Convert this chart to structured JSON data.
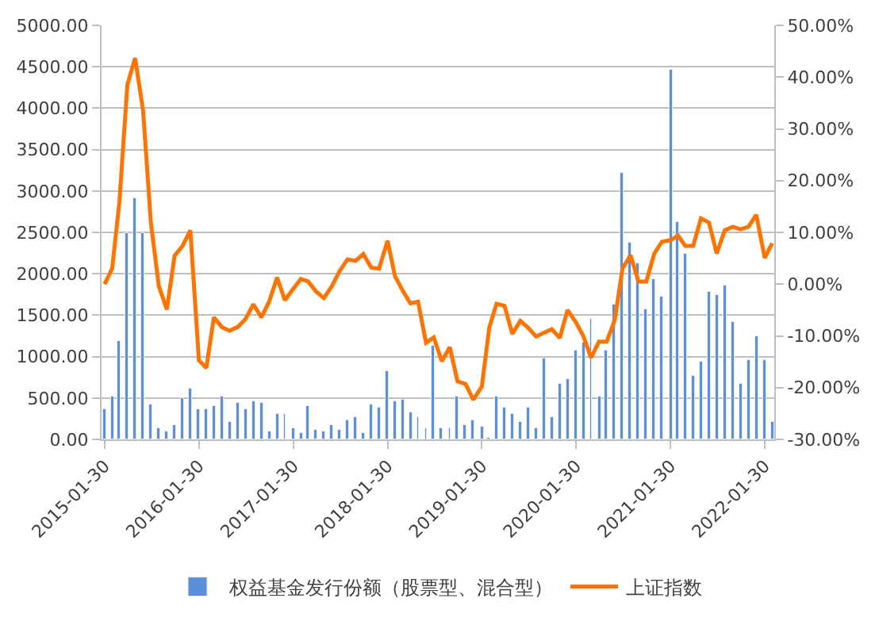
{
  "chart_data": {
    "type": "bar",
    "x": [
      "2015-01-30",
      "2015-02-28",
      "2015-03-28",
      "2015-04-28",
      "2015-05-28",
      "2015-06-28",
      "2015-07-28",
      "2015-08-28",
      "2015-09-28",
      "2015-10-28",
      "2015-11-28",
      "2015-12-28",
      "2016-01-30",
      "2016-02-28",
      "2016-03-28",
      "2016-04-28",
      "2016-05-28",
      "2016-06-28",
      "2016-07-28",
      "2016-08-28",
      "2016-09-28",
      "2016-10-28",
      "2016-11-28",
      "2016-12-28",
      "2017-01-30",
      "2017-02-28",
      "2017-03-28",
      "2017-04-28",
      "2017-05-28",
      "2017-06-28",
      "2017-07-28",
      "2017-08-28",
      "2017-09-28",
      "2017-10-28",
      "2017-11-28",
      "2017-12-28",
      "2018-01-30",
      "2018-02-28",
      "2018-03-28",
      "2018-04-28",
      "2018-05-28",
      "2018-06-28",
      "2018-07-28",
      "2018-08-28",
      "2018-09-28",
      "2018-10-28",
      "2018-11-28",
      "2018-12-28",
      "2019-01-30",
      "2019-02-28",
      "2019-03-28",
      "2019-04-28",
      "2019-05-28",
      "2019-06-28",
      "2019-07-28",
      "2019-08-28",
      "2019-09-28",
      "2019-10-28",
      "2019-11-28",
      "2019-12-28",
      "2020-01-30",
      "2020-02-28",
      "2020-03-28",
      "2020-04-28",
      "2020-05-28",
      "2020-06-28",
      "2020-07-28",
      "2020-08-28",
      "2020-09-28",
      "2020-10-28",
      "2020-11-28",
      "2020-12-28",
      "2021-01-30",
      "2021-02-28",
      "2021-03-28",
      "2021-04-28",
      "2021-05-28",
      "2021-06-28",
      "2021-07-28",
      "2021-08-28",
      "2021-09-28",
      "2021-10-28",
      "2021-11-28",
      "2021-12-28",
      "2022-01-30",
      "2022-02-28"
    ],
    "series": [
      {
        "name": "权益基金发行份额（股票型、混合型）",
        "color": "#5b8fd9",
        "values": [
          370,
          520,
          1180,
          2500,
          2910,
          2500,
          420,
          135,
          105,
          165,
          490,
          610,
          360,
          360,
          395,
          520,
          210,
          440,
          370,
          460,
          440,
          90,
          310,
          310,
          140,
          85,
          395,
          115,
          100,
          165,
          115,
          235,
          260,
          75,
          425,
          375,
          820,
          460,
          480,
          325,
          260,
          135,
          1130,
          130,
          140,
          510,
          170,
          230,
          160,
          20,
          510,
          390,
          315,
          205,
          390,
          140,
          980,
          265,
          670,
          730,
          1070,
          1160,
          1455,
          510,
          1070,
          1630,
          3210,
          2370,
          2120,
          1580,
          1940,
          1730,
          4460,
          2620,
          2250,
          775,
          930,
          1780,
          1750,
          1860,
          1410,
          680,
          950,
          1245,
          950,
          205
        ]
      },
      {
        "name": "上证指数",
        "type": "line",
        "axis": "y2",
        "color": "#ff7300",
        "values": [
          0.0,
          3.0,
          15.8,
          38.5,
          43.7,
          33.5,
          11.9,
          -0.4,
          -4.9,
          5.5,
          7.4,
          10.4,
          -14.7,
          -16.2,
          -6.4,
          -8.3,
          -9.0,
          -8.3,
          -6.8,
          -3.9,
          -6.4,
          -3.4,
          1.3,
          -3.1,
          -0.9,
          1.0,
          0.5,
          -1.4,
          -2.7,
          -0.4,
          2.5,
          4.8,
          4.5,
          5.8,
          3.2,
          3.0,
          8.4,
          1.5,
          -1.1,
          -3.7,
          -3.4,
          -11.3,
          -10.3,
          -14.9,
          -12.2,
          -18.8,
          -19.3,
          -22.3,
          -19.8,
          -8.4,
          -3.8,
          -4.2,
          -9.6,
          -7.1,
          -8.4,
          -10.1,
          -9.4,
          -8.7,
          -10.4,
          -5.0,
          -7.4,
          -10.1,
          -14.2,
          -11.1,
          -11.1,
          -6.9,
          3.0,
          5.6,
          0.5,
          0.5,
          5.9,
          8.2,
          8.5,
          9.4,
          7.4,
          7.4,
          12.7,
          11.9,
          5.9,
          10.4,
          11.1,
          10.6,
          11.1,
          13.4,
          5.1,
          7.9
        ]
      }
    ],
    "xlim": [
      "2015-01-18",
      "2022-03-08"
    ],
    "xticks": [
      "2015-01-30",
      "2016-01-30",
      "2017-01-30",
      "2018-01-30",
      "2019-01-30",
      "2020-01-30",
      "2021-01-30",
      "2022-01-30"
    ],
    "ylim": [
      0,
      5000
    ],
    "yticks": [
      {
        "value": 0,
        "label": "0.00"
      },
      {
        "value": 500,
        "label": "500.00"
      },
      {
        "value": 1000,
        "label": "1000.00"
      },
      {
        "value": 1500,
        "label": "1500.00"
      },
      {
        "value": 2000,
        "label": "2000.00"
      },
      {
        "value": 2500,
        "label": "2500.00"
      },
      {
        "value": 3000,
        "label": "3000.00"
      },
      {
        "value": 3500,
        "label": "3500.00"
      },
      {
        "value": 4000,
        "label": "4000.00"
      },
      {
        "value": 4500,
        "label": "4500.00"
      },
      {
        "value": 5000,
        "label": "5000.00"
      }
    ],
    "y2lim": [
      -30,
      50
    ],
    "y2ticks": [
      {
        "value": -30,
        "label": "-30.00%"
      },
      {
        "value": -20,
        "label": "-20.00%"
      },
      {
        "value": -10,
        "label": "-10.00%"
      },
      {
        "value": 0,
        "label": "0.00%"
      },
      {
        "value": 10,
        "label": "10.00%"
      },
      {
        "value": 20,
        "label": "20.00%"
      },
      {
        "value": 30,
        "label": "30.00%"
      },
      {
        "value": 40,
        "label": "40.00%"
      },
      {
        "value": 50,
        "label": "50.00%"
      }
    ],
    "grid": "y",
    "legend": "bottom",
    "line_style": "solid",
    "marker": "none"
  }
}
